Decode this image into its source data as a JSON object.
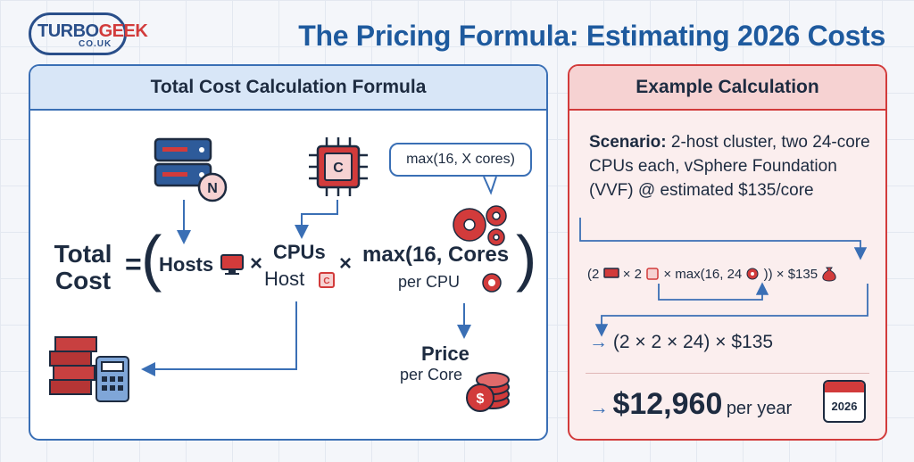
{
  "logo": {
    "main_a": "TURBO",
    "main_b": "GEEK",
    "sub": "CO.UK"
  },
  "title": "The Pricing Formula: Estimating 2026 Costs",
  "left_panel": {
    "header": "Total Cost Calculation Formula",
    "bubble": "max(16, X cores)",
    "icons": {
      "server_badge": "N",
      "cpu_letter": "C"
    },
    "formula": {
      "total": "Total",
      "cost": "Cost",
      "equals": "=",
      "open_paren": "(",
      "hosts": "Hosts",
      "times1": "×",
      "cpus": "CPUs",
      "host": "Host",
      "times2": "×",
      "max": "max(16, Cores",
      "per_cpu": "per CPU",
      "close_paren": ")"
    },
    "price": "Price",
    "per_core": "per Core"
  },
  "right_panel": {
    "header": "Example Calculation",
    "scenario_label": "Scenario:",
    "scenario_text": "2-host cluster, two 24-core CPUs each, vSphere Foundation (VVF) @ estimated $135/core",
    "calc_line1": {
      "a": "(2",
      "b": "× 2",
      "c": "× max(16, 24",
      "d": ")) × $135"
    },
    "calc_line2": "(2 × 2 × 24) × $135",
    "result_amount": "$12,960",
    "result_unit": "per year",
    "calendar_year": "2026",
    "arrow": "→"
  },
  "colors": {
    "brand_blue": "#1e5a9e",
    "accent_red": "#d23b3b",
    "panel_blue": "#3a6fb5",
    "ink": "#1d2b40"
  }
}
